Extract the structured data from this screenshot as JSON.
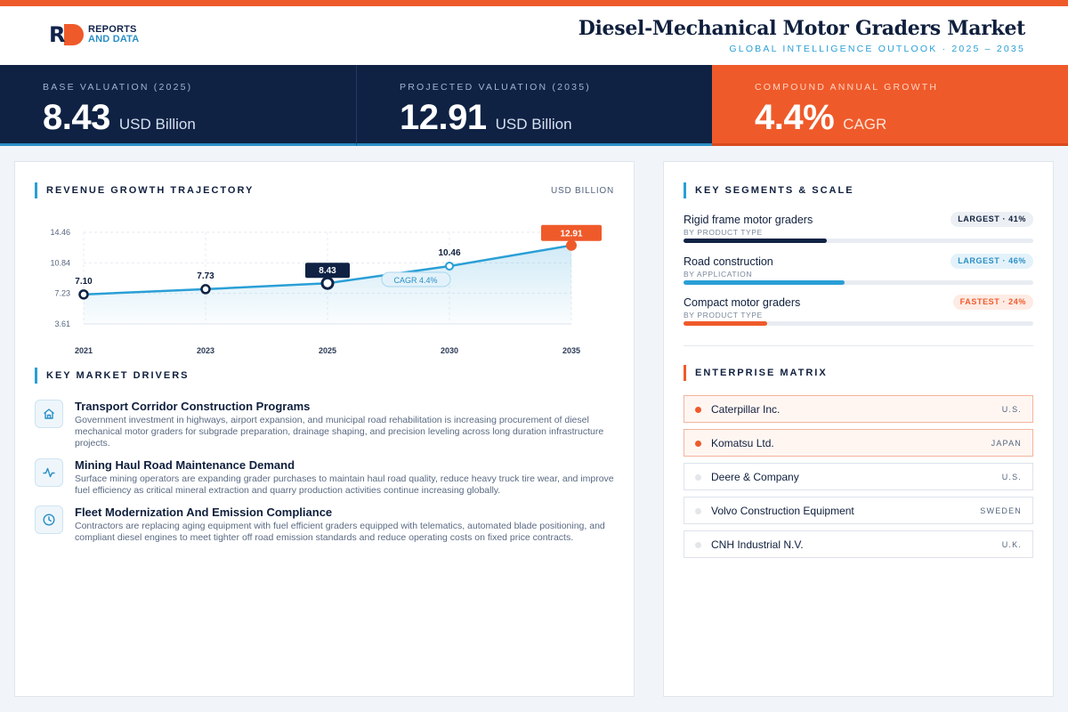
{
  "brand": {
    "logo_top": "REPORTS",
    "logo_bottom": "AND DATA"
  },
  "header": {
    "title": "Diesel-Mechanical Motor Graders Market",
    "subtitle": "GLOBAL INTELLIGENCE OUTLOOK  ·  2025 – 2035"
  },
  "kpis": [
    {
      "label": "BASE VALUATION (2025)",
      "value": "8.43",
      "unit": "USD Billion"
    },
    {
      "label": "PROJECTED VALUATION (2035)",
      "value": "12.91",
      "unit": "USD Billion"
    },
    {
      "label": "COMPOUND ANNUAL GROWTH",
      "value": "4.4%",
      "unit": "CAGR"
    }
  ],
  "revenue": {
    "heading": "REVENUE GROWTH TRAJECTORY",
    "units": "USD BILLION",
    "cagr_tag": "CAGR 4.4%"
  },
  "chart_data": {
    "type": "line",
    "x": [
      "2021",
      "2023",
      "2025",
      "2030",
      "2035"
    ],
    "values": [
      7.1,
      7.73,
      8.43,
      10.46,
      12.91
    ],
    "data_labels": [
      "7.10",
      "7.73",
      "8.43",
      "10.46",
      "12.91"
    ],
    "y_ticks": [
      "14.46",
      "10.84",
      "7.23",
      "3.61"
    ],
    "ylim": [
      3.61,
      14.46
    ],
    "grid": true,
    "area_fill": true,
    "highlight_index": 2,
    "final_index": 4
  },
  "drivers": {
    "heading": "KEY MARKET DRIVERS",
    "items": [
      {
        "icon": "home-icon",
        "title": "Transport Corridor Construction Programs",
        "text": "Government investment in highways, airport expansion, and municipal road rehabilitation is increasing procurement of diesel mechanical motor graders for subgrade preparation, drainage shaping, and precision leveling across long duration infrastructure projects."
      },
      {
        "icon": "activity-icon",
        "title": "Mining Haul Road Maintenance Demand",
        "text": "Surface mining operators are expanding grader purchases to maintain haul road quality, reduce heavy truck tire wear, and improve fuel efficiency as critical mineral extraction and quarry production activities continue increasing globally."
      },
      {
        "icon": "clock-icon",
        "title": "Fleet Modernization And Emission Compliance",
        "text": "Contractors are replacing aging equipment with fuel efficient graders equipped with telematics, automated blade positioning, and compliant diesel engines to meet tighter off road emission standards and reduce operating costs on fixed price contracts."
      }
    ]
  },
  "segments": {
    "heading": "KEY SEGMENTS & SCALE",
    "items": [
      {
        "name": "Rigid frame motor graders",
        "category": "BY PRODUCT TYPE",
        "badge": "LARGEST · 41%",
        "share": 0.41,
        "color": "#0f2244",
        "badge_bg": "#eceff4",
        "badge_fg": "#0f1f3d"
      },
      {
        "name": "Road construction",
        "category": "BY APPLICATION",
        "badge": "LARGEST · 46%",
        "share": 0.46,
        "color": "#2a9fd6",
        "badge_bg": "#e3f2fa",
        "badge_fg": "#2a8fc6"
      },
      {
        "name": "Compact motor graders",
        "category": "BY PRODUCT TYPE",
        "badge": "FASTEST · 24%",
        "share": 0.24,
        "color": "#ef5a2a",
        "badge_bg": "#fdebe4",
        "badge_fg": "#ef5a2a"
      }
    ]
  },
  "enterprise": {
    "heading": "ENTERPRISE MATRIX",
    "items": [
      {
        "name": "Caterpillar Inc.",
        "country": "U.S.",
        "highlight": true
      },
      {
        "name": "Komatsu Ltd.",
        "country": "JAPAN",
        "highlight": true
      },
      {
        "name": "Deere & Company",
        "country": "U.S.",
        "highlight": false
      },
      {
        "name": "Volvo Construction Equipment",
        "country": "SWEDEN",
        "highlight": false
      },
      {
        "name": "CNH Industrial N.V.",
        "country": "U.K.",
        "highlight": false
      }
    ]
  },
  "colors": {
    "accent": "#ef5a2a",
    "navy": "#0f2244",
    "blue": "#2a9fd6"
  }
}
